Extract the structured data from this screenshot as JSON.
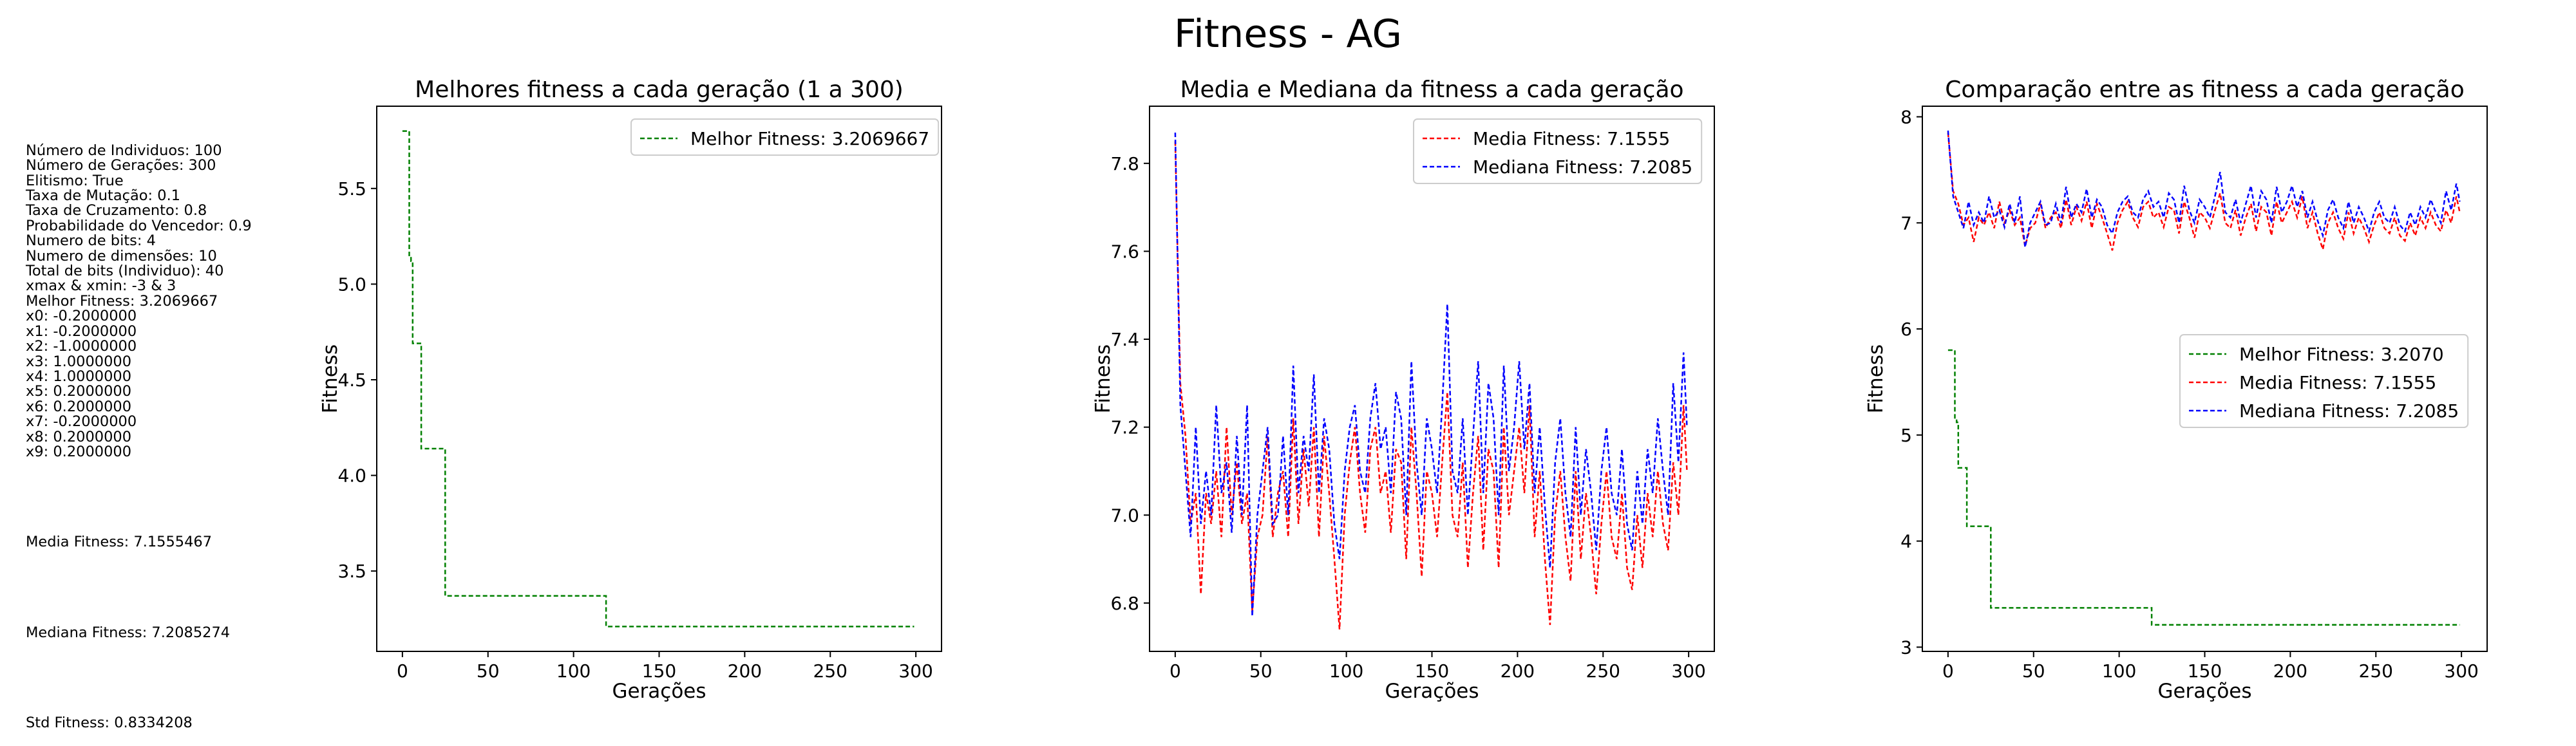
{
  "figure": {
    "title": "Fitness - AG"
  },
  "params": {
    "lines": [
      "Número de Individuos: 100",
      "Número de Gerações: 300",
      "Elitismo: True",
      "Taxa de Mutação: 0.1",
      "Taxa de Cruzamento: 0.8",
      "Probabilidade do Vencedor: 0.9",
      "Numero de bits: 4",
      "Numero de dimensões: 10",
      "Total de bits (Individuo): 40",
      "xmax & xmin: -3 & 3",
      "Melhor Fitness: 3.2069667",
      "x0: -0.2000000",
      "x1: -0.2000000",
      "x2: -1.0000000",
      "x3: 1.0000000",
      "x4: 1.0000000",
      "x5: 0.2000000",
      "x6: 0.2000000",
      "x7: -0.2000000",
      "x8: 0.2000000",
      "x9: 0.2000000"
    ],
    "media": "Media Fitness: 7.1555467",
    "mediana": "Mediana Fitness: 7.2085274",
    "std": "Std Fitness: 0.8334208"
  },
  "colors": {
    "best": "#008000",
    "mean": "#ff0000",
    "median": "#0000ff"
  },
  "chart_data": [
    {
      "type": "line",
      "title": "Melhores fitness a cada geração (1 a 300)",
      "xlabel": "Gerações",
      "ylabel": "Fitness",
      "xlim": [
        -15,
        315
      ],
      "ylim": [
        3.08,
        5.93
      ],
      "xticks": [
        0,
        50,
        100,
        150,
        200,
        250,
        300
      ],
      "yticks": [
        3.5,
        4.0,
        4.5,
        5.0,
        5.5
      ],
      "ytick_labels": [
        "3.5",
        "4.0",
        "4.5",
        "5.0",
        "5.5"
      ],
      "legend": "top-right",
      "series": [
        {
          "name": "Melhor Fitness: 3.2069667",
          "color": "best",
          "style": "step",
          "points": [
            [
              0,
              5.8
            ],
            [
              4,
              5.8
            ],
            [
              4,
              5.15
            ],
            [
              5,
              5.15
            ],
            [
              5,
              5.12
            ],
            [
              6,
              5.12
            ],
            [
              6,
              4.69
            ],
            [
              11,
              4.69
            ],
            [
              11,
              4.14
            ],
            [
              25,
              4.14
            ],
            [
              25,
              3.37
            ],
            [
              119,
              3.37
            ],
            [
              119,
              3.21
            ],
            [
              299,
              3.21
            ]
          ]
        }
      ]
    },
    {
      "type": "line",
      "title": "Media e Mediana da fitness a cada geração",
      "xlabel": "Gerações",
      "ylabel": "Fitness",
      "xlim": [
        -15,
        315
      ],
      "ylim": [
        6.69,
        7.93
      ],
      "xticks": [
        0,
        50,
        100,
        150,
        200,
        250,
        300
      ],
      "yticks": [
        6.8,
        7.0,
        7.2,
        7.4,
        7.6,
        7.8
      ],
      "ytick_labels": [
        "6.8",
        "7.0",
        "7.2",
        "7.4",
        "7.6",
        "7.8"
      ],
      "legend": "top-right",
      "series": [
        {
          "name": "Media Fitness: 7.1555",
          "color": "mean",
          "points": [
            [
              0,
              7.85
            ],
            [
              3,
              7.3
            ],
            [
              6,
              7.18
            ],
            [
              9,
              6.98
            ],
            [
              12,
              7.05
            ],
            [
              15,
              6.82
            ],
            [
              18,
              7.05
            ],
            [
              21,
              6.98
            ],
            [
              24,
              7.1
            ],
            [
              27,
              6.95
            ],
            [
              30,
              7.2
            ],
            [
              33,
              7.0
            ],
            [
              36,
              7.12
            ],
            [
              39,
              6.98
            ],
            [
              42,
              7.05
            ],
            [
              45,
              6.78
            ],
            [
              48,
              6.95
            ],
            [
              51,
              7.0
            ],
            [
              54,
              7.18
            ],
            [
              57,
              6.95
            ],
            [
              60,
              7.05
            ],
            [
              63,
              7.1
            ],
            [
              66,
              6.95
            ],
            [
              69,
              7.22
            ],
            [
              72,
              6.98
            ],
            [
              75,
              7.15
            ],
            [
              78,
              7.02
            ],
            [
              81,
              7.2
            ],
            [
              84,
              6.95
            ],
            [
              87,
              7.18
            ],
            [
              90,
              7.05
            ],
            [
              93,
              6.9
            ],
            [
              96,
              6.74
            ],
            [
              99,
              7.0
            ],
            [
              102,
              7.12
            ],
            [
              105,
              7.2
            ],
            [
              108,
              7.05
            ],
            [
              111,
              6.96
            ],
            [
              114,
              7.15
            ],
            [
              117,
              7.2
            ],
            [
              120,
              7.05
            ],
            [
              123,
              7.1
            ],
            [
              126,
              6.96
            ],
            [
              129,
              7.15
            ],
            [
              132,
              7.12
            ],
            [
              135,
              6.9
            ],
            [
              138,
              7.2
            ],
            [
              141,
              7.05
            ],
            [
              144,
              6.86
            ],
            [
              147,
              7.1
            ],
            [
              150,
              7.05
            ],
            [
              153,
              6.95
            ],
            [
              156,
              7.12
            ],
            [
              159,
              7.28
            ],
            [
              162,
              7.0
            ],
            [
              165,
              6.95
            ],
            [
              168,
              7.12
            ],
            [
              171,
              6.88
            ],
            [
              174,
              7.05
            ],
            [
              177,
              7.18
            ],
            [
              180,
              6.92
            ],
            [
              183,
              7.15
            ],
            [
              186,
              7.1
            ],
            [
              189,
              6.88
            ],
            [
              192,
              7.2
            ],
            [
              195,
              7.0
            ],
            [
              198,
              7.1
            ],
            [
              201,
              7.2
            ],
            [
              204,
              7.05
            ],
            [
              207,
              7.25
            ],
            [
              210,
              6.95
            ],
            [
              213,
              7.1
            ],
            [
              216,
              6.9
            ],
            [
              219,
              6.75
            ],
            [
              222,
              7.0
            ],
            [
              225,
              7.1
            ],
            [
              228,
              6.95
            ],
            [
              231,
              6.85
            ],
            [
              234,
              7.1
            ],
            [
              237,
              6.9
            ],
            [
              240,
              7.05
            ],
            [
              243,
              6.95
            ],
            [
              246,
              6.82
            ],
            [
              249,
              6.98
            ],
            [
              252,
              7.1
            ],
            [
              255,
              6.95
            ],
            [
              258,
              6.9
            ],
            [
              261,
              7.05
            ],
            [
              264,
              6.88
            ],
            [
              267,
              6.83
            ],
            [
              270,
              7.0
            ],
            [
              273,
              6.88
            ],
            [
              276,
              7.05
            ],
            [
              279,
              6.95
            ],
            [
              282,
              7.1
            ],
            [
              285,
              6.98
            ],
            [
              288,
              6.92
            ],
            [
              291,
              7.12
            ],
            [
              294,
              7.0
            ],
            [
              297,
              7.25
            ],
            [
              299,
              7.1
            ]
          ]
        },
        {
          "name": "Mediana Fitness: 7.2085",
          "color": "median",
          "points": [
            [
              0,
              7.87
            ],
            [
              3,
              7.25
            ],
            [
              6,
              7.1
            ],
            [
              9,
              6.95
            ],
            [
              12,
              7.2
            ],
            [
              15,
              6.98
            ],
            [
              18,
              7.1
            ],
            [
              21,
              7.0
            ],
            [
              24,
              7.25
            ],
            [
              27,
              7.05
            ],
            [
              30,
              7.12
            ],
            [
              33,
              6.96
            ],
            [
              36,
              7.18
            ],
            [
              39,
              7.0
            ],
            [
              42,
              7.25
            ],
            [
              45,
              6.77
            ],
            [
              48,
              7.0
            ],
            [
              51,
              7.1
            ],
            [
              54,
              7.2
            ],
            [
              57,
              6.98
            ],
            [
              60,
              7.0
            ],
            [
              63,
              7.18
            ],
            [
              66,
              7.0
            ],
            [
              69,
              7.34
            ],
            [
              72,
              7.05
            ],
            [
              75,
              7.18
            ],
            [
              78,
              7.1
            ],
            [
              81,
              7.32
            ],
            [
              84,
              7.05
            ],
            [
              87,
              7.22
            ],
            [
              90,
              7.15
            ],
            [
              93,
              6.98
            ],
            [
              96,
              6.9
            ],
            [
              99,
              7.1
            ],
            [
              102,
              7.2
            ],
            [
              105,
              7.25
            ],
            [
              108,
              7.1
            ],
            [
              111,
              7.05
            ],
            [
              114,
              7.22
            ],
            [
              117,
              7.3
            ],
            [
              120,
              7.15
            ],
            [
              123,
              7.2
            ],
            [
              126,
              7.05
            ],
            [
              129,
              7.28
            ],
            [
              132,
              7.22
            ],
            [
              135,
              7.0
            ],
            [
              138,
              7.35
            ],
            [
              141,
              7.12
            ],
            [
              144,
              7.0
            ],
            [
              147,
              7.22
            ],
            [
              150,
              7.15
            ],
            [
              153,
              7.05
            ],
            [
              156,
              7.25
            ],
            [
              159,
              7.48
            ],
            [
              162,
              7.1
            ],
            [
              165,
              7.05
            ],
            [
              168,
              7.22
            ],
            [
              171,
              7.0
            ],
            [
              174,
              7.18
            ],
            [
              177,
              7.35
            ],
            [
              180,
              7.05
            ],
            [
              183,
              7.3
            ],
            [
              186,
              7.22
            ],
            [
              189,
              7.0
            ],
            [
              192,
              7.34
            ],
            [
              195,
              7.1
            ],
            [
              198,
              7.2
            ],
            [
              201,
              7.35
            ],
            [
              204,
              7.15
            ],
            [
              207,
              7.3
            ],
            [
              210,
              7.05
            ],
            [
              213,
              7.2
            ],
            [
              216,
              7.02
            ],
            [
              219,
              6.88
            ],
            [
              222,
              7.12
            ],
            [
              225,
              7.22
            ],
            [
              228,
              7.05
            ],
            [
              231,
              6.95
            ],
            [
              234,
              7.2
            ],
            [
              237,
              7.0
            ],
            [
              240,
              7.15
            ],
            [
              243,
              7.05
            ],
            [
              246,
              6.92
            ],
            [
              249,
              7.1
            ],
            [
              252,
              7.2
            ],
            [
              255,
              7.05
            ],
            [
              258,
              7.0
            ],
            [
              261,
              7.15
            ],
            [
              264,
              6.98
            ],
            [
              267,
              6.92
            ],
            [
              270,
              7.1
            ],
            [
              273,
              6.98
            ],
            [
              276,
              7.15
            ],
            [
              279,
              7.05
            ],
            [
              282,
              7.22
            ],
            [
              285,
              7.1
            ],
            [
              288,
              7.0
            ],
            [
              291,
              7.3
            ],
            [
              294,
              7.12
            ],
            [
              297,
              7.37
            ],
            [
              299,
              7.2
            ]
          ]
        }
      ]
    },
    {
      "type": "line",
      "title": "Comparação entre as fitness a cada geração",
      "xlabel": "Gerações",
      "ylabel": "Fitness",
      "xlim": [
        -15,
        315
      ],
      "ylim": [
        2.96,
        8.1
      ],
      "xticks": [
        0,
        50,
        100,
        150,
        200,
        250,
        300
      ],
      "yticks": [
        3,
        4,
        5,
        6,
        7,
        8
      ],
      "ytick_labels": [
        "3",
        "4",
        "5",
        "6",
        "7",
        "8"
      ],
      "legend": "center-right",
      "series": [
        {
          "name": "Melhor Fitness: 3.2070",
          "color": "best",
          "style": "step",
          "points": [
            [
              0,
              5.8
            ],
            [
              4,
              5.8
            ],
            [
              4,
              5.15
            ],
            [
              5,
              5.15
            ],
            [
              5,
              5.12
            ],
            [
              6,
              5.12
            ],
            [
              6,
              4.69
            ],
            [
              11,
              4.69
            ],
            [
              11,
              4.14
            ],
            [
              25,
              4.14
            ],
            [
              25,
              3.37
            ],
            [
              119,
              3.37
            ],
            [
              119,
              3.21
            ],
            [
              299,
              3.21
            ]
          ]
        },
        {
          "name": "Media Fitness: 7.1555",
          "color": "mean",
          "ref": "mean"
        },
        {
          "name": "Mediana Fitness: 7.2085",
          "color": "median",
          "ref": "median"
        }
      ]
    }
  ]
}
